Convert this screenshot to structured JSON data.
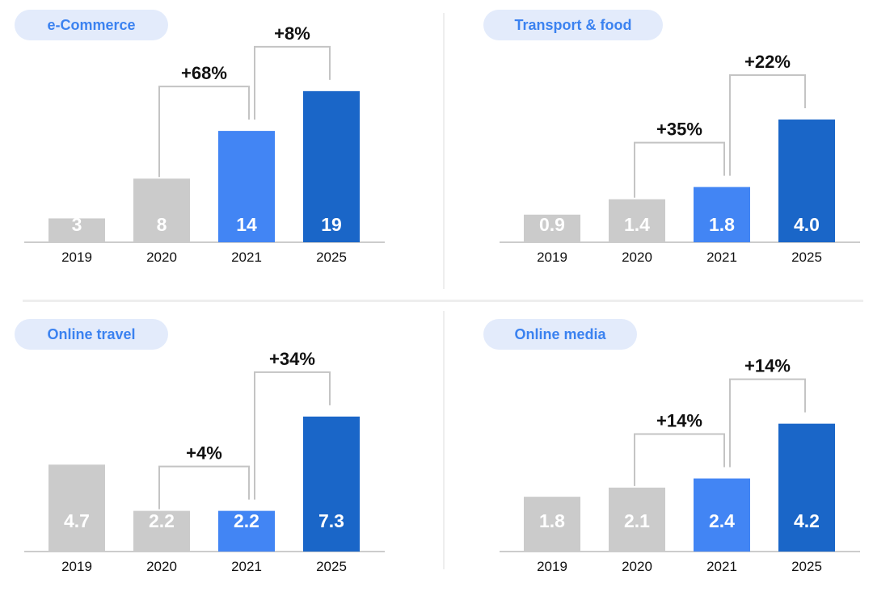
{
  "colors": {
    "past": "#cbcbcb",
    "current": "#4285f4",
    "projected": "#1a66c8",
    "baseline": "#cccccc",
    "bracket": "#c4c4c4"
  },
  "chart_data": [
    {
      "type": "bar",
      "title": "e-Commerce",
      "categories": [
        "2019",
        "2020",
        "2021",
        "2025"
      ],
      "values": [
        3,
        8,
        14,
        19
      ],
      "value_labels": [
        "3",
        "8",
        "14",
        "19"
      ],
      "annotations": [
        {
          "from": "2020",
          "to": "2021",
          "text": "+68%"
        },
        {
          "from": "2021",
          "to": "2025",
          "text": "+8%"
        }
      ]
    },
    {
      "type": "bar",
      "title": "Transport & food",
      "categories": [
        "2019",
        "2020",
        "2021",
        "2025"
      ],
      "values": [
        0.9,
        1.4,
        1.8,
        4.0
      ],
      "value_labels": [
        "0.9",
        "1.4",
        "1.8",
        "4.0"
      ],
      "annotations": [
        {
          "from": "2020",
          "to": "2021",
          "text": "+35%"
        },
        {
          "from": "2021",
          "to": "2025",
          "text": "+22%"
        }
      ]
    },
    {
      "type": "bar",
      "title": "Online travel",
      "categories": [
        "2019",
        "2020",
        "2021",
        "2025"
      ],
      "values": [
        4.7,
        2.2,
        2.2,
        7.3
      ],
      "value_labels": [
        "4.7",
        "2.2",
        "2.2",
        "7.3"
      ],
      "annotations": [
        {
          "from": "2020",
          "to": "2021",
          "text": "+4%"
        },
        {
          "from": "2021",
          "to": "2025",
          "text": "+34%"
        }
      ]
    },
    {
      "type": "bar",
      "title": "Online media",
      "categories": [
        "2019",
        "2020",
        "2021",
        "2025"
      ],
      "values": [
        1.8,
        2.1,
        2.4,
        4.2
      ],
      "value_labels": [
        "1.8",
        "2.1",
        "2.4",
        "4.2"
      ],
      "annotations": [
        {
          "from": "2020",
          "to": "2021",
          "text": "+14%"
        },
        {
          "from": "2021",
          "to": "2025",
          "text": "+14%"
        }
      ]
    }
  ]
}
